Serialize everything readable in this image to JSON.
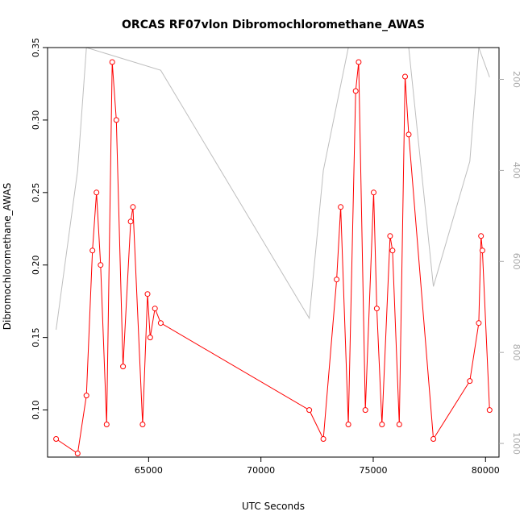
{
  "chart_data": {
    "type": "line",
    "title": "ORCAS RF07vlon Dibromochloromethane_AWAS",
    "xlabel": "UTC Seconds",
    "ylabel": "Dibromochloromethane_AWAS",
    "xlim": [
      60500,
      80600
    ],
    "ylim": [
      0.0675,
      0.35
    ],
    "x_ticks": [
      "65000",
      "70000",
      "75000",
      "80000"
    ],
    "y_ticks": [
      "0.10",
      "0.15",
      "0.20",
      "0.25",
      "0.30",
      "0.35"
    ],
    "y2_ticks": [
      "200",
      "400",
      "600",
      "800",
      "1000"
    ],
    "y2lim": [
      1030,
      130
    ],
    "colors": {
      "series": "#ff0000",
      "secondary": "#bebebe",
      "axis": "#000000",
      "axis2": "#aaaaaa"
    },
    "series": [
      {
        "x": [
          60880,
          61840,
          62230,
          62500,
          62680,
          62860,
          63130,
          63380,
          63560,
          63860,
          64200,
          64300,
          64730,
          64950,
          65070,
          65280,
          65540,
          72150,
          72780,
          73370,
          73550,
          73890,
          74220,
          74350,
          74650,
          75020,
          75160,
          75390,
          75750,
          75860,
          76160,
          76420,
          76580,
          77680,
          79300,
          79700,
          79800,
          79860,
          80180
        ],
        "y": [
          0.08,
          0.07,
          0.11,
          0.21,
          0.25,
          0.2,
          0.09,
          0.34,
          0.3,
          0.13,
          0.23,
          0.24,
          0.09,
          0.18,
          0.15,
          0.17,
          0.16,
          0.1,
          0.08,
          0.19,
          0.24,
          0.09,
          0.32,
          0.34,
          0.1,
          0.25,
          0.17,
          0.09,
          0.22,
          0.21,
          0.09,
          0.33,
          0.29,
          0.08,
          0.12,
          0.16,
          0.22,
          0.21,
          0.1
        ]
      },
      {
        "x": [
          60880,
          61840,
          62230,
          65540,
          72150,
          72780,
          73890,
          74220,
          76160,
          76580,
          77680,
          79300,
          79700,
          80180
        ],
        "y": [
          750,
          400,
          110,
          180,
          725,
          400,
          110,
          110,
          110,
          110,
          655,
          380,
          110,
          195
        ]
      }
    ]
  }
}
